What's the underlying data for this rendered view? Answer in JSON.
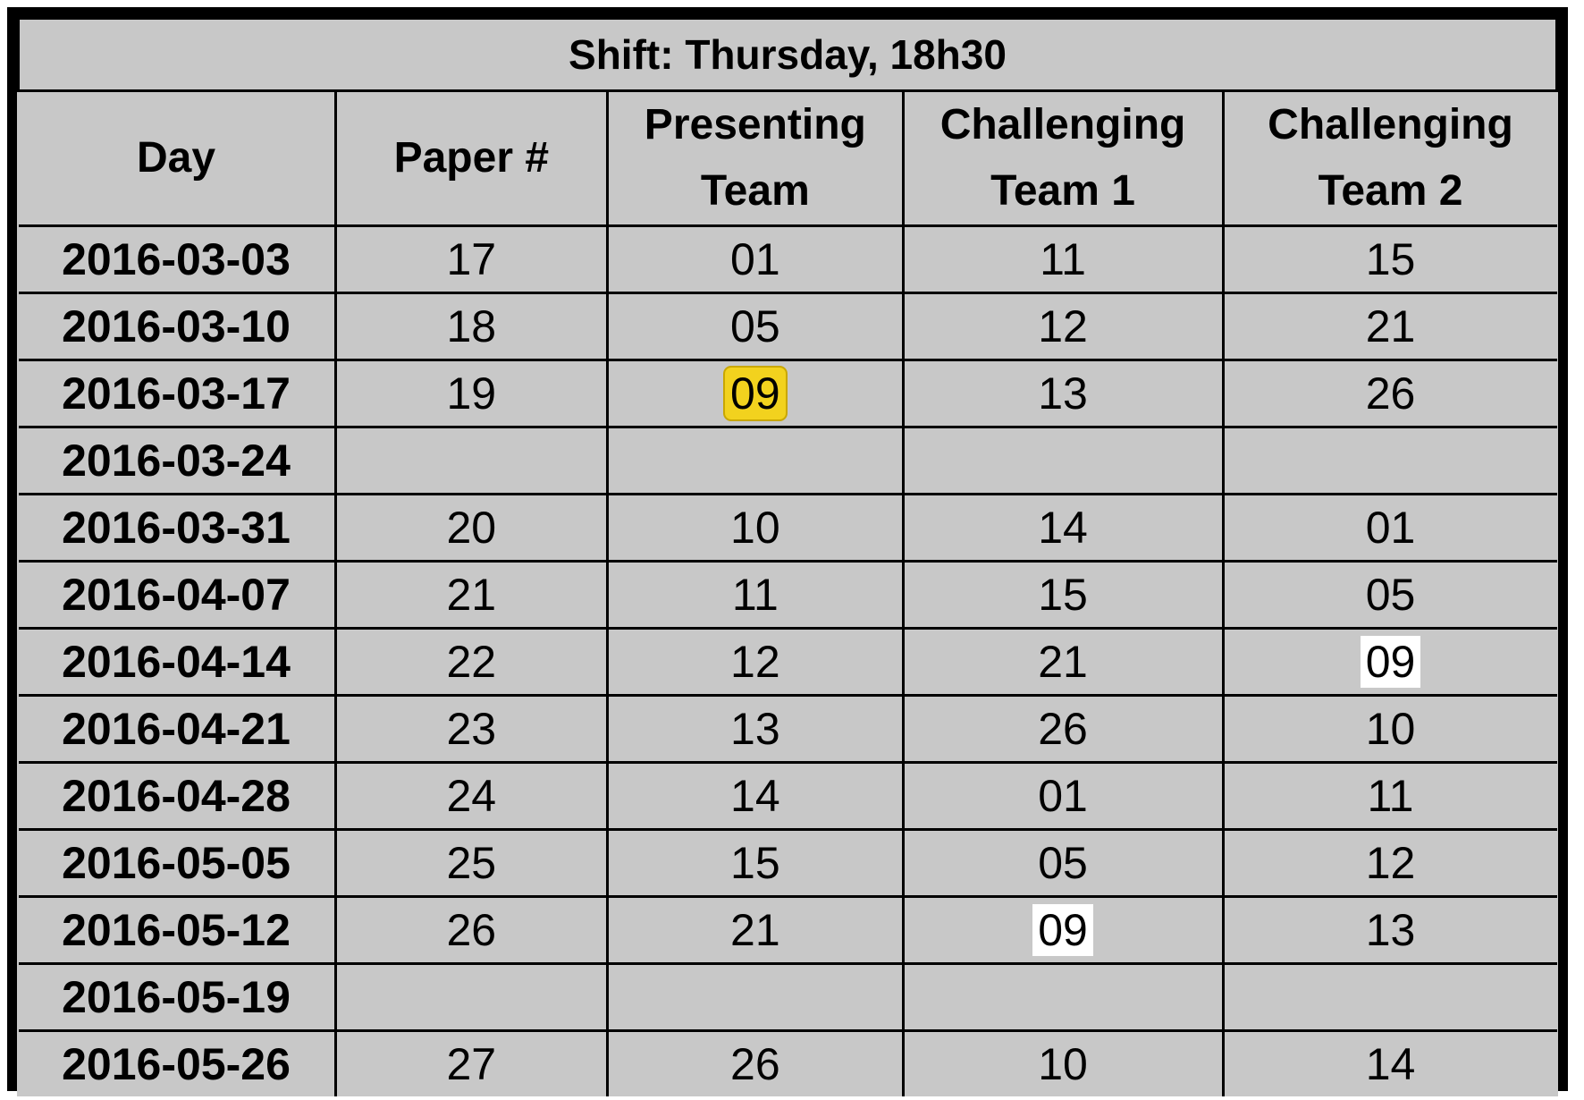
{
  "title": "Shift: Thursday, 18h30",
  "columns": [
    "Day",
    "Paper #",
    "Presenting\nTeam",
    "Challenging\nTeam 1",
    "Challenging\nTeam 2"
  ],
  "highlight_colors": {
    "yellow": "#f2d21e",
    "white": "#ffffff",
    "sheet_background": "#c8c8c8"
  },
  "rows": [
    {
      "day": "2016-03-03",
      "paper": "17",
      "presenting": "01",
      "challenging1": "11",
      "challenging2": "15"
    },
    {
      "day": "2016-03-10",
      "paper": "18",
      "presenting": "05",
      "challenging1": "12",
      "challenging2": "21"
    },
    {
      "day": "2016-03-17",
      "paper": "19",
      "presenting": "09",
      "challenging1": "13",
      "challenging2": "26",
      "highlight": {
        "presenting": "yellow"
      }
    },
    {
      "day": "2016-03-24",
      "paper": "",
      "presenting": "",
      "challenging1": "",
      "challenging2": ""
    },
    {
      "day": "2016-03-31",
      "paper": "20",
      "presenting": "10",
      "challenging1": "14",
      "challenging2": "01"
    },
    {
      "day": "2016-04-07",
      "paper": "21",
      "presenting": "11",
      "challenging1": "15",
      "challenging2": "05"
    },
    {
      "day": "2016-04-14",
      "paper": "22",
      "presenting": "12",
      "challenging1": "21",
      "challenging2": "09",
      "highlight": {
        "challenging2": "white"
      }
    },
    {
      "day": "2016-04-21",
      "paper": "23",
      "presenting": "13",
      "challenging1": "26",
      "challenging2": "10"
    },
    {
      "day": "2016-04-28",
      "paper": "24",
      "presenting": "14",
      "challenging1": "01",
      "challenging2": "11"
    },
    {
      "day": "2016-05-05",
      "paper": "25",
      "presenting": "15",
      "challenging1": "05",
      "challenging2": "12"
    },
    {
      "day": "2016-05-12",
      "paper": "26",
      "presenting": "21",
      "challenging1": "09",
      "challenging2": "13",
      "highlight": {
        "challenging1": "white"
      }
    },
    {
      "day": "2016-05-19",
      "paper": "",
      "presenting": "",
      "challenging1": "",
      "challenging2": ""
    },
    {
      "day": "2016-05-26",
      "paper": "27",
      "presenting": "26",
      "challenging1": "10",
      "challenging2": "14"
    }
  ]
}
